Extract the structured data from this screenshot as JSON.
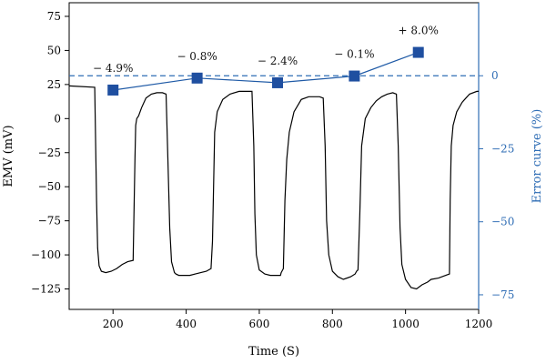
{
  "chart_data": {
    "type": "line",
    "title": "",
    "xlabel": "Time (S)",
    "ylabel": "EMV (mV)",
    "y2label": "Error curve (%)",
    "xlim": [
      80,
      1200
    ],
    "ylim": [
      -140,
      85
    ],
    "y2lim": [
      -80,
      25
    ],
    "x_ticks": [
      200,
      400,
      600,
      800,
      1000,
      1200
    ],
    "y_ticks": [
      75,
      50,
      25,
      0,
      -25,
      -50,
      -75,
      -100,
      -125
    ],
    "y2_ticks": [
      0,
      -25,
      -50,
      -75
    ],
    "grid": false,
    "colors": {
      "emv": "#000000",
      "error": "#1f5aa6",
      "error_marker": "#1f4fa0",
      "right_axis": "#2f6db5"
    },
    "series": [
      {
        "axis": "left",
        "x": [
          80,
          150,
          155,
          158,
          162,
          168,
          180,
          195,
          210,
          225,
          240,
          255,
          260,
          262,
          265,
          270,
          278,
          290,
          305,
          320,
          335,
          345,
          350,
          355,
          360,
          365,
          368,
          372,
          380,
          395,
          410,
          425,
          440,
          455,
          468,
          472,
          475,
          478,
          485,
          500,
          520,
          545,
          570,
          580,
          585,
          588,
          592,
          600,
          615,
          630,
          645,
          658,
          660,
          662,
          666,
          670,
          675,
          682,
          695,
          715,
          735,
          750,
          765,
          775,
          780,
          784,
          790,
          800,
          815,
          830,
          850,
          862,
          864,
          866,
          870,
          875,
          880,
          890,
          905,
          920,
          935,
          950,
          965,
          975,
          980,
          985,
          990,
          1000,
          1015,
          1030,
          1045,
          1060,
          1070,
          1090,
          1110,
          1120,
          1122,
          1125,
          1130,
          1140,
          1155,
          1175,
          1195,
          1200
        ],
        "y": [
          24,
          23,
          -60,
          -95,
          -108,
          -112,
          -113,
          -112,
          -110,
          -107,
          -105,
          -104,
          -30,
          -5,
          0,
          2,
          8,
          15,
          18,
          19,
          19,
          18,
          -30,
          -80,
          -105,
          -110,
          -113,
          -114,
          -115,
          -115,
          -115,
          -114,
          -113,
          -112,
          -110,
          -90,
          -50,
          -10,
          5,
          14,
          18,
          20,
          20,
          20,
          -20,
          -70,
          -100,
          -111,
          -114,
          -115,
          -115,
          -115,
          -113,
          -112,
          -110,
          -60,
          -30,
          -10,
          5,
          14,
          16,
          16,
          16,
          15,
          -20,
          -75,
          -100,
          -112,
          -116,
          -118,
          -116,
          -114,
          -113,
          -112,
          -111,
          -70,
          -20,
          0,
          8,
          13,
          16,
          18,
          19,
          18,
          -20,
          -80,
          -107,
          -118,
          -124,
          -125,
          -122,
          -120,
          -118,
          -117,
          -115,
          -114,
          -60,
          -20,
          -5,
          5,
          12,
          18,
          20,
          20
        ]
      },
      {
        "axis": "right",
        "name": "",
        "x": [
          200,
          430,
          650,
          860,
          1035
        ],
        "y": [
          -4.9,
          -0.8,
          -2.4,
          -0.1,
          8.0
        ],
        "labels": [
          "− 4.9%",
          "− 0.8%",
          "− 2.4%",
          "− 0.1%",
          "+ 8.0%"
        ]
      }
    ],
    "reference_line": {
      "axis": "right",
      "y": 0,
      "style": "dashed"
    }
  }
}
